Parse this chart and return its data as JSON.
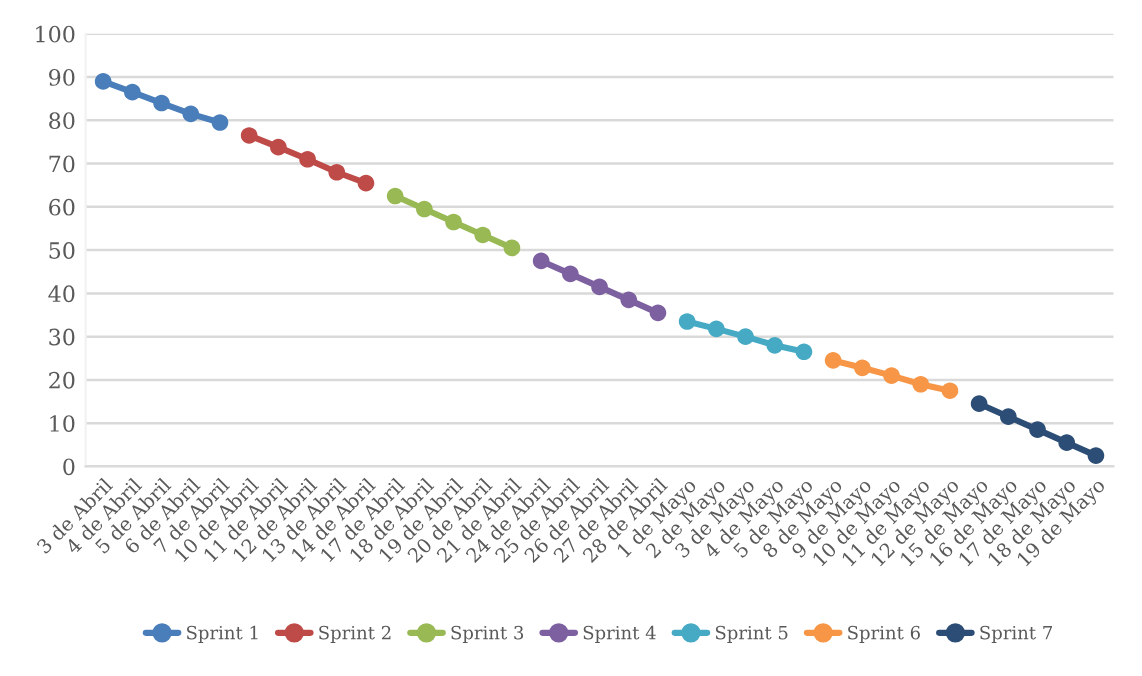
{
  "chart_data": {
    "type": "line",
    "categories": [
      "3 de Abril",
      "4 de Abril",
      "5 de Abril",
      "6 de Abril",
      "7 de Abril",
      "10 de Abril",
      "11 de Abril",
      "12 de Abril",
      "13 de Abril",
      "14 de Abril",
      "17 de Abril",
      "18 de Abril",
      "19 de Abril",
      "20 de Abril",
      "21 de Abril",
      "24 de Abril",
      "25 de Abril",
      "26 de Abril",
      "27 de Abril",
      "28 de Abril",
      "1 de Mayo",
      "2 de Mayo",
      "3 de Mayo",
      "4 de Mayo",
      "5 de Mayo",
      "8 de Mayo",
      "9 de Mayo",
      "10 de Mayo",
      "11 de Mayo",
      "12 de Mayo",
      "15 de Mayo",
      "16 de Mayo",
      "17 de Mayo",
      "18 de Mayo",
      "19 de Mayo"
    ],
    "series": [
      {
        "name": "Sprint 1",
        "color": "#4a7ebb",
        "values": [
          89,
          86.5,
          84,
          81.5,
          79.5,
          null,
          null,
          null,
          null,
          null,
          null,
          null,
          null,
          null,
          null,
          null,
          null,
          null,
          null,
          null,
          null,
          null,
          null,
          null,
          null,
          null,
          null,
          null,
          null,
          null,
          null,
          null,
          null,
          null,
          null
        ]
      },
      {
        "name": "Sprint 2",
        "color": "#be4b48",
        "values": [
          null,
          null,
          null,
          null,
          null,
          76.5,
          73.8,
          71,
          68,
          65.5,
          null,
          null,
          null,
          null,
          null,
          null,
          null,
          null,
          null,
          null,
          null,
          null,
          null,
          null,
          null,
          null,
          null,
          null,
          null,
          null,
          null,
          null,
          null,
          null,
          null
        ]
      },
      {
        "name": "Sprint 3",
        "color": "#98b954",
        "values": [
          null,
          null,
          null,
          null,
          null,
          null,
          null,
          null,
          null,
          null,
          62.5,
          59.5,
          56.5,
          53.5,
          50.5,
          null,
          null,
          null,
          null,
          null,
          null,
          null,
          null,
          null,
          null,
          null,
          null,
          null,
          null,
          null,
          null,
          null,
          null,
          null,
          null
        ]
      },
      {
        "name": "Sprint 4",
        "color": "#7d60a0",
        "values": [
          null,
          null,
          null,
          null,
          null,
          null,
          null,
          null,
          null,
          null,
          null,
          null,
          null,
          null,
          null,
          47.5,
          44.5,
          41.5,
          38.5,
          35.5,
          null,
          null,
          null,
          null,
          null,
          null,
          null,
          null,
          null,
          null,
          null,
          null,
          null,
          null,
          null
        ]
      },
      {
        "name": "Sprint 5",
        "color": "#46aac5",
        "values": [
          null,
          null,
          null,
          null,
          null,
          null,
          null,
          null,
          null,
          null,
          null,
          null,
          null,
          null,
          null,
          null,
          null,
          null,
          null,
          null,
          33.5,
          31.8,
          30,
          28,
          26.5,
          null,
          null,
          null,
          null,
          null,
          null,
          null,
          null,
          null,
          null
        ]
      },
      {
        "name": "Sprint 6",
        "color": "#f79646",
        "values": [
          null,
          null,
          null,
          null,
          null,
          null,
          null,
          null,
          null,
          null,
          null,
          null,
          null,
          null,
          null,
          null,
          null,
          null,
          null,
          null,
          null,
          null,
          null,
          null,
          null,
          24.5,
          22.8,
          21,
          19,
          17.5,
          null,
          null,
          null,
          null,
          null
        ]
      },
      {
        "name": "Sprint 7",
        "color": "#2c4d75",
        "values": [
          null,
          null,
          null,
          null,
          null,
          null,
          null,
          null,
          null,
          null,
          null,
          null,
          null,
          null,
          null,
          null,
          null,
          null,
          null,
          null,
          null,
          null,
          null,
          null,
          null,
          null,
          null,
          null,
          null,
          null,
          14.5,
          11.5,
          8.5,
          5.5,
          2.5
        ]
      }
    ],
    "ylim": [
      0,
      100
    ],
    "yticks": [
      0,
      10,
      20,
      30,
      40,
      50,
      60,
      70,
      80,
      90,
      100
    ],
    "grid": "y",
    "legend": "bottom",
    "marker": "circle",
    "line_style": "solid"
  }
}
